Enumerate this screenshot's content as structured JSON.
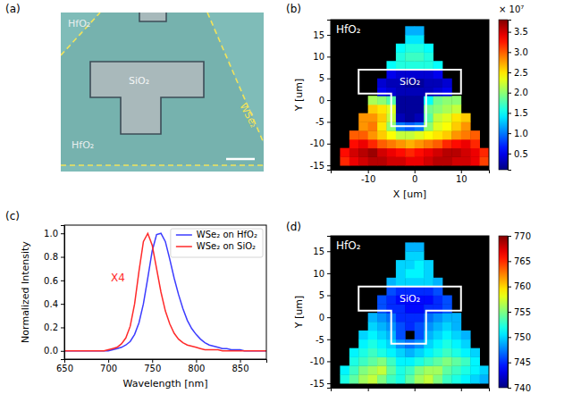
{
  "chart_data": [
    {
      "type": "image",
      "title": "(a)",
      "annotations": [
        "HfO₂",
        "SiO₂",
        "HfO₂",
        "WSe₂"
      ]
    },
    {
      "type": "heatmap",
      "title": "(b)",
      "xlabel": "X [um]",
      "ylabel": "Y [um]",
      "color": "jet",
      "xlim": [
        -18,
        16
      ],
      "ylim": [
        -16,
        18.5
      ],
      "xticks": [
        -10,
        0,
        10
      ],
      "yticks": [
        -15,
        -10,
        -5,
        0,
        5,
        10,
        15
      ],
      "annotations": [
        "HfO₂",
        "SiO₂"
      ],
      "outline": {
        "x": [
          -12,
          10,
          10,
          2.5,
          2.5,
          -5,
          -5,
          -12
        ],
        "y": [
          7,
          7,
          1.5,
          1.5,
          -6,
          -6,
          1.5,
          1.5
        ]
      },
      "x": [
        -15,
        -13,
        -11,
        -9,
        -7,
        -5,
        -3,
        -1,
        1,
        3,
        5,
        7,
        9,
        11,
        13,
        15
      ],
      "y": [
        -14,
        -12,
        -10,
        -8,
        -6,
        -4,
        -2,
        0,
        2,
        4,
        6,
        8,
        10,
        12,
        14,
        16
      ],
      "z": [
        [
          3.2,
          3.4,
          3.5,
          3.6,
          3.6,
          3.5,
          3.5,
          3.4,
          3.4,
          3.5,
          3.6,
          3.6,
          3.5,
          3.5,
          3.4,
          3.1
        ],
        [
          3.3,
          3.5,
          3.6,
          3.7,
          3.5,
          3.4,
          3.3,
          3.2,
          3.3,
          3.4,
          3.5,
          3.6,
          3.6,
          3.5,
          3.4,
          3.2
        ],
        [
          null,
          3.3,
          3.4,
          3.2,
          3.0,
          2.9,
          2.8,
          2.7,
          2.8,
          2.9,
          3.0,
          3.2,
          3.3,
          3.4,
          3.2,
          null
        ],
        [
          null,
          3.0,
          3.0,
          2.8,
          2.6,
          2.4,
          2.2,
          2.2,
          2.3,
          2.4,
          2.5,
          2.6,
          2.8,
          2.9,
          3.0,
          null
        ],
        [
          null,
          null,
          2.8,
          2.9,
          2.5,
          2.0,
          1.0,
          0.9,
          1.0,
          2.0,
          2.3,
          2.4,
          2.6,
          2.8,
          null,
          null
        ],
        [
          null,
          null,
          2.8,
          2.8,
          2.6,
          2.2,
          0.3,
          0.2,
          0.3,
          1.8,
          2.2,
          2.3,
          2.5,
          2.6,
          null,
          null
        ],
        [
          null,
          null,
          null,
          2.6,
          2.5,
          2.3,
          0.2,
          0.2,
          0.2,
          1.9,
          2.0,
          2.1,
          2.2,
          null,
          null,
          null
        ],
        [
          null,
          null,
          null,
          2.1,
          2.0,
          1.8,
          0.2,
          0.2,
          0.2,
          1.5,
          1.9,
          2.0,
          2.0,
          null,
          null,
          null
        ],
        [
          null,
          null,
          null,
          null,
          0.5,
          0.4,
          0.3,
          0.3,
          0.3,
          0.3,
          0.4,
          0.5,
          null,
          null,
          null,
          null
        ],
        [
          null,
          null,
          null,
          null,
          0.4,
          0.3,
          0.3,
          0.2,
          0.2,
          0.3,
          0.3,
          0.4,
          null,
          null,
          null,
          null
        ],
        [
          null,
          null,
          null,
          null,
          null,
          0.5,
          0.4,
          0.4,
          0.4,
          0.4,
          0.5,
          null,
          null,
          null,
          null,
          null
        ],
        [
          null,
          null,
          null,
          null,
          null,
          1.5,
          1.6,
          1.6,
          1.6,
          1.6,
          1.5,
          null,
          null,
          null,
          null,
          null
        ],
        [
          null,
          null,
          null,
          null,
          null,
          null,
          1.6,
          1.7,
          1.7,
          1.6,
          null,
          null,
          null,
          null,
          null,
          null
        ],
        [
          null,
          null,
          null,
          null,
          null,
          null,
          1.5,
          1.6,
          1.6,
          1.5,
          null,
          null,
          null,
          null,
          null,
          null
        ],
        [
          null,
          null,
          null,
          null,
          null,
          null,
          null,
          1.4,
          1.4,
          null,
          null,
          null,
          null,
          null,
          null,
          null
        ],
        [
          null,
          null,
          null,
          null,
          null,
          null,
          null,
          1.2,
          1.2,
          null,
          null,
          null,
          null,
          null,
          null,
          null
        ]
      ],
      "zlim": [
        0.1,
        3.8
      ],
      "zticks": [
        0.5,
        {
          "value": 1,
          "label": "1.0"
        },
        1.5,
        {
          "value": 2,
          "label": "2.0"
        },
        2.5,
        {
          "value": 3,
          "label": "3.0"
        },
        3.5
      ],
      "colorbar_title": "× 10⁷"
    },
    {
      "type": "line",
      "title": "(c)",
      "xlabel": "Wavelength [nm]",
      "ylabel": "Normalized Intensity",
      "xlim": [
        650,
        880
      ],
      "ylim": [
        -0.07,
        1.07
      ],
      "xticks": [
        650,
        700,
        750,
        800,
        850
      ],
      "yticks": [
        {
          "value": 0,
          "label": "0.0"
        },
        0.2,
        0.4,
        0.6,
        0.8,
        {
          "value": 1,
          "label": "1.0"
        }
      ],
      "legend": "top-right",
      "annotations": [
        "X4"
      ],
      "x": [
        650,
        655,
        660,
        665,
        670,
        675,
        680,
        685,
        690,
        695,
        700,
        705,
        710,
        715,
        720,
        725,
        730,
        735,
        740,
        745,
        750,
        755,
        760,
        765,
        770,
        775,
        780,
        785,
        790,
        795,
        800,
        805,
        810,
        815,
        820,
        825,
        830,
        835,
        840,
        845,
        850,
        855,
        860,
        865,
        870,
        875,
        880
      ],
      "series": [
        {
          "name": "WSe₂ on HfO₂",
          "color": "#3c3cff",
          "values": [
            0,
            0,
            0,
            0,
            0,
            0,
            0,
            0,
            0,
            0,
            0.0,
            0.01,
            0.02,
            0.03,
            0.05,
            0.08,
            0.14,
            0.24,
            0.4,
            0.62,
            0.85,
            0.99,
            1.0,
            0.93,
            0.78,
            0.62,
            0.48,
            0.36,
            0.26,
            0.19,
            0.14,
            0.1,
            0.07,
            0.05,
            0.04,
            0.03,
            0.02,
            0.02,
            0.01,
            0.01,
            0.01,
            0,
            0,
            0,
            0,
            0,
            0
          ]
        },
        {
          "name": "WSe₂ on SiO₂",
          "color": "#ff2a2a",
          "values": [
            0,
            0,
            0,
            0,
            0,
            0,
            0,
            0,
            0,
            0,
            0.01,
            0.02,
            0.03,
            0.06,
            0.11,
            0.21,
            0.4,
            0.68,
            0.93,
            1.0,
            0.9,
            0.7,
            0.5,
            0.34,
            0.23,
            0.15,
            0.1,
            0.07,
            0.05,
            0.04,
            0.03,
            0.02,
            0.01,
            0.01,
            0.01,
            0.01,
            0,
            0,
            0,
            0,
            0,
            0,
            0,
            0,
            0,
            0,
            0
          ]
        }
      ]
    },
    {
      "type": "heatmap",
      "title": "(d)",
      "ylabel": "Y [um]",
      "color": "jet",
      "tick_labels": "y",
      "xlim": [
        -18,
        16
      ],
      "ylim": [
        -16,
        18.5
      ],
      "xticks": [
        -10,
        0,
        10
      ],
      "yticks": [
        -15,
        -10,
        -5,
        0,
        5,
        10,
        15
      ],
      "annotations": [
        "HfO₂",
        "SiO₂"
      ],
      "outline": {
        "x": [
          -12,
          10,
          10,
          2.5,
          2.5,
          -5,
          -5,
          -12
        ],
        "y": [
          7,
          7,
          1.5,
          1.5,
          -6,
          -6,
          1.5,
          1.5
        ]
      },
      "x": [
        -15,
        -13,
        -11,
        -9,
        -7,
        -5,
        -3,
        -1,
        1,
        3,
        5,
        7,
        9,
        11,
        13,
        15
      ],
      "y": [
        -14,
        -12,
        -10,
        -8,
        -6,
        -4,
        -2,
        0,
        2,
        4,
        6,
        8,
        10,
        12,
        14,
        16
      ],
      "z": [
        [
          752,
          754,
          756,
          757,
          755,
          753,
          752,
          754,
          756,
          757,
          755,
          753,
          752,
          751,
          750,
          749
        ],
        [
          751,
          753,
          755,
          756,
          757,
          754,
          752,
          753,
          755,
          756,
          756,
          754,
          753,
          752,
          751,
          750
        ],
        [
          null,
          752,
          753,
          754,
          755,
          753,
          751,
          751,
          752,
          753,
          754,
          755,
          754,
          753,
          751,
          null
        ],
        [
          null,
          751,
          752,
          753,
          752,
          751,
          750,
          749,
          750,
          751,
          752,
          753,
          752,
          751,
          750,
          null
        ],
        [
          null,
          null,
          751,
          752,
          751,
          750,
          748,
          747,
          748,
          750,
          751,
          752,
          751,
          750,
          null,
          null
        ],
        [
          null,
          null,
          750,
          751,
          750,
          749,
          746,
          null,
          746,
          749,
          750,
          751,
          750,
          749,
          null,
          null
        ],
        [
          null,
          null,
          null,
          750,
          749,
          748,
          746,
          745,
          746,
          748,
          749,
          750,
          749,
          null,
          null,
          null
        ],
        [
          null,
          null,
          null,
          749,
          748,
          747,
          745,
          745,
          745,
          747,
          748,
          749,
          749,
          null,
          null,
          null
        ],
        [
          null,
          null,
          null,
          null,
          746,
          745,
          745,
          744,
          744,
          745,
          745,
          746,
          null,
          null,
          null,
          null
        ],
        [
          null,
          null,
          null,
          null,
          746,
          745,
          744,
          744,
          744,
          744,
          745,
          746,
          null,
          null,
          null,
          null
        ],
        [
          null,
          null,
          null,
          null,
          null,
          746,
          745,
          745,
          745,
          745,
          746,
          null,
          null,
          null,
          null,
          null
        ],
        [
          null,
          null,
          null,
          null,
          null,
          749,
          750,
          750,
          750,
          750,
          749,
          null,
          null,
          null,
          null,
          null
        ],
        [
          null,
          null,
          null,
          null,
          null,
          null,
          750,
          751,
          751,
          750,
          null,
          null,
          null,
          null,
          null,
          null
        ],
        [
          null,
          null,
          null,
          null,
          null,
          null,
          750,
          750,
          751,
          750,
          null,
          null,
          null,
          null,
          null,
          null
        ],
        [
          null,
          null,
          null,
          null,
          null,
          null,
          null,
          750,
          750,
          null,
          null,
          null,
          null,
          null,
          null,
          null
        ],
        [
          null,
          null,
          null,
          null,
          null,
          null,
          null,
          749,
          749,
          null,
          null,
          null,
          null,
          null,
          null,
          null
        ]
      ],
      "zlim": [
        740,
        770
      ],
      "zticks": [
        740,
        745,
        750,
        755,
        760,
        765,
        770
      ]
    }
  ]
}
